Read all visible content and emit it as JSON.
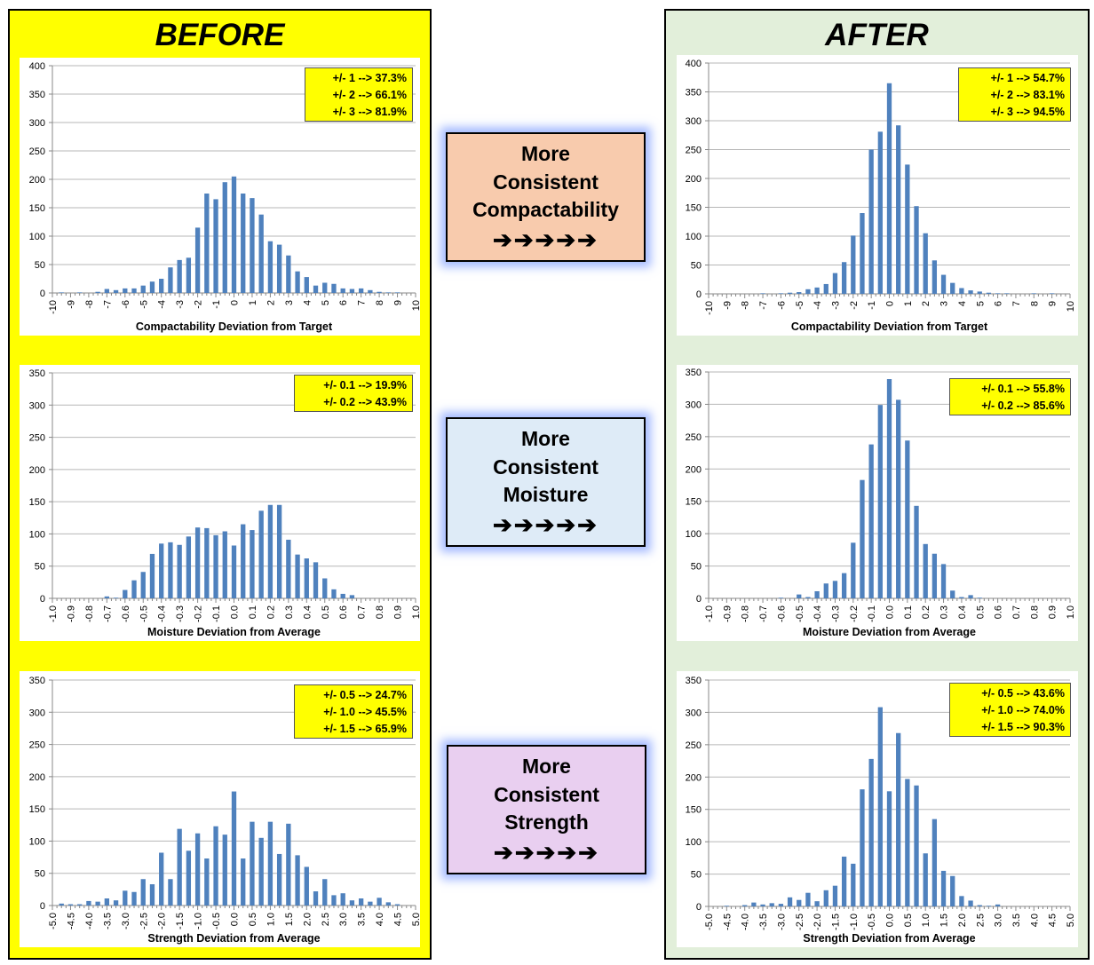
{
  "before_title": "BEFORE",
  "after_title": "AFTER",
  "middle": [
    {
      "lines": [
        "More",
        "Consistent",
        "Compactability"
      ],
      "arrows": "➔➔➔➔➔",
      "color": "#f8cbad"
    },
    {
      "lines": [
        "More",
        "Consistent",
        "Moisture"
      ],
      "arrows": "➔➔➔➔➔",
      "color": "#deebf7"
    },
    {
      "lines": [
        "More",
        "Consistent",
        "Strength"
      ],
      "arrows": "➔➔➔➔➔",
      "color": "#e9cff0"
    }
  ],
  "colors": {
    "bar": "#4f81bd",
    "before_panel": "#ffff00",
    "after_panel": "#e2efda",
    "stat_box": "#ffff00"
  },
  "chart_data": [
    {
      "type": "bar",
      "panel": "before",
      "xlabel": "Compactability Deviation from Target",
      "ylabel": "",
      "ylim": [
        0,
        400
      ],
      "yticks": [
        0,
        50,
        100,
        150,
        200,
        250,
        300,
        350,
        400
      ],
      "xrange": [
        -10,
        10
      ],
      "xticks": [
        "-10",
        "-9",
        "-8",
        "-7",
        "-6",
        "-5",
        "-4",
        "-3",
        "-2",
        "-1",
        "0",
        "1",
        "2",
        "3",
        "4",
        "5",
        "6",
        "7",
        "8",
        "9",
        "10"
      ],
      "x": [
        -9.5,
        -8.5,
        -7.5,
        -7,
        -6.5,
        -6,
        -5.5,
        -5,
        -4.5,
        -4,
        -3.5,
        -3,
        -2.5,
        -2,
        -1.5,
        -1,
        -0.5,
        0,
        0.5,
        1,
        1.5,
        2,
        2.5,
        3,
        3.5,
        4,
        4.5,
        5,
        5.5,
        6,
        6.5,
        7,
        7.5,
        8,
        8.5,
        9
      ],
      "values": [
        1,
        1,
        2,
        7,
        5,
        8,
        8,
        13,
        20,
        25,
        45,
        58,
        62,
        115,
        175,
        165,
        195,
        205,
        175,
        167,
        138,
        91,
        85,
        66,
        38,
        28,
        13,
        18,
        16,
        8,
        7,
        8,
        5,
        2,
        1,
        1
      ],
      "stats": [
        "+/- 1 --> 37.3%",
        "+/- 2 --> 66.1%",
        "+/- 3 --> 81.9%"
      ],
      "grid": true
    },
    {
      "type": "bar",
      "panel": "before",
      "xlabel": "Moisture Deviation from Average",
      "ylabel": "",
      "ylim": [
        0,
        350
      ],
      "yticks": [
        0,
        50,
        100,
        150,
        200,
        250,
        300,
        350
      ],
      "xrange": [
        -1.0,
        1.0
      ],
      "xticks": [
        "-1.0",
        "-0.9",
        "-0.8",
        "-0.7",
        "-0.6",
        "-0.5",
        "-0.4",
        "-0.3",
        "-0.2",
        "-0.1",
        "0.0",
        "0.1",
        "0.2",
        "0.3",
        "0.4",
        "0.5",
        "0.6",
        "0.7",
        "0.8",
        "0.9",
        "1.0"
      ],
      "x": [
        -0.7,
        -0.65,
        -0.6,
        -0.55,
        -0.5,
        -0.45,
        -0.4,
        -0.35,
        -0.3,
        -0.25,
        -0.2,
        -0.15,
        -0.1,
        -0.05,
        0,
        0.05,
        0.1,
        0.15,
        0.2,
        0.25,
        0.3,
        0.35,
        0.4,
        0.45,
        0.5,
        0.55,
        0.6,
        0.65
      ],
      "values": [
        3,
        1,
        13,
        28,
        41,
        69,
        85,
        87,
        83,
        96,
        110,
        109,
        98,
        104,
        82,
        115,
        106,
        136,
        145,
        145,
        91,
        68,
        62,
        56,
        31,
        14,
        7,
        5
      ],
      "stats": [
        "+/- 0.1 --> 19.9%",
        "+/- 0.2 --> 43.9%"
      ],
      "grid": true
    },
    {
      "type": "bar",
      "panel": "before",
      "xlabel": "Strength Deviation from Average",
      "ylabel": "",
      "ylim": [
        0,
        350
      ],
      "yticks": [
        0,
        50,
        100,
        150,
        200,
        250,
        300,
        350
      ],
      "xrange": [
        -5.0,
        5.0
      ],
      "xticks": [
        "-5.0",
        "-4.5",
        "-4.0",
        "-3.5",
        "-3.0",
        "-2.5",
        "-2.0",
        "-1.5",
        "-1.0",
        "-0.5",
        "0.0",
        "0.5",
        "1.0",
        "1.5",
        "2.0",
        "2.5",
        "3.0",
        "3.5",
        "4.0",
        "4.5",
        "5.0"
      ],
      "x": [
        -4.75,
        -4.5,
        -4.25,
        -4,
        -3.75,
        -3.5,
        -3.25,
        -3,
        -2.75,
        -2.5,
        -2.25,
        -2,
        -1.75,
        -1.5,
        -1.25,
        -1,
        -0.75,
        -0.5,
        -0.25,
        0,
        0.25,
        0.5,
        0.75,
        1,
        1.25,
        1.5,
        1.75,
        2,
        2.25,
        2.5,
        2.75,
        3,
        3.25,
        3.5,
        3.75,
        4,
        4.25,
        4.5
      ],
      "values": [
        3,
        2,
        2,
        7,
        6,
        11,
        8,
        23,
        21,
        41,
        33,
        82,
        41,
        119,
        85,
        112,
        73,
        123,
        110,
        177,
        73,
        130,
        105,
        130,
        80,
        127,
        78,
        60,
        22,
        41,
        16,
        19,
        8,
        11,
        6,
        12,
        5,
        2
      ],
      "stats": [
        "+/- 0.5 --> 24.7%",
        "+/- 1.0 --> 45.5%",
        "+/- 1.5 --> 65.9%"
      ],
      "grid": true
    },
    {
      "type": "bar",
      "panel": "after",
      "xlabel": "Compactability Deviation from Target",
      "ylabel": "",
      "ylim": [
        0,
        400
      ],
      "yticks": [
        0,
        50,
        100,
        150,
        200,
        250,
        300,
        350,
        400
      ],
      "xrange": [
        -10,
        10
      ],
      "xticks": [
        "-10",
        "-9",
        "-8",
        "-7",
        "-6",
        "-5",
        "-4",
        "-3",
        "-2",
        "-1",
        "0",
        "1",
        "2",
        "3",
        "4",
        "5",
        "6",
        "7",
        "8",
        "9",
        "10"
      ],
      "x": [
        -7,
        -6,
        -5.5,
        -5,
        -4.5,
        -4,
        -3.5,
        -3,
        -2.5,
        -2,
        -1.5,
        -1,
        -0.5,
        0,
        0.5,
        1,
        1.5,
        2,
        2.5,
        3,
        3.5,
        4,
        4.5,
        5,
        5.5,
        6,
        6.5,
        8,
        9
      ],
      "values": [
        1,
        1,
        2,
        3,
        8,
        11,
        17,
        36,
        55,
        101,
        140,
        250,
        281,
        365,
        292,
        224,
        152,
        105,
        58,
        33,
        19,
        10,
        6,
        4,
        2,
        1,
        1,
        1,
        1
      ],
      "stats": [
        "+/- 1 --> 54.7%",
        "+/- 2 --> 83.1%",
        "+/- 3 --> 94.5%"
      ],
      "grid": true
    },
    {
      "type": "bar",
      "panel": "after",
      "xlabel": "Moisture Deviation from Average",
      "ylabel": "",
      "ylim": [
        0,
        350
      ],
      "yticks": [
        0,
        50,
        100,
        150,
        200,
        250,
        300,
        350
      ],
      "xrange": [
        -1.0,
        1.0
      ],
      "xticks": [
        "-1.0",
        "-0.9",
        "-0.8",
        "-0.7",
        "-0.6",
        "-0.5",
        "-0.4",
        "-0.3",
        "-0.2",
        "-0.1",
        "0.0",
        "0.1",
        "0.2",
        "0.3",
        "0.4",
        "0.5",
        "0.6",
        "0.7",
        "0.8",
        "0.9",
        "1.0"
      ],
      "x": [
        -0.6,
        -0.5,
        -0.45,
        -0.4,
        -0.35,
        -0.3,
        -0.25,
        -0.2,
        -0.15,
        -0.1,
        -0.05,
        0,
        0.05,
        0.1,
        0.15,
        0.2,
        0.25,
        0.3,
        0.35,
        0.4,
        0.45,
        0.5
      ],
      "values": [
        1,
        6,
        2,
        11,
        23,
        27,
        39,
        86,
        183,
        238,
        299,
        339,
        307,
        244,
        143,
        84,
        69,
        53,
        12,
        2,
        5,
        1
      ],
      "stats": [
        "+/- 0.1 --> 55.8%",
        "+/- 0.2 --> 85.6%"
      ],
      "grid": true
    },
    {
      "type": "bar",
      "panel": "after",
      "xlabel": "Strength Deviation from Average",
      "ylabel": "",
      "ylim": [
        0,
        350
      ],
      "yticks": [
        0,
        50,
        100,
        150,
        200,
        250,
        300,
        350
      ],
      "xrange": [
        -5.0,
        5.0
      ],
      "xticks": [
        "-5.0",
        "-4.5",
        "-4.0",
        "-3.5",
        "-3.0",
        "-2.5",
        "-2.0",
        "-1.5",
        "-1.0",
        "-0.5",
        "0.0",
        "0.5",
        "1.0",
        "1.5",
        "2.0",
        "2.5",
        "3.0",
        "3.5",
        "4.0",
        "4.5",
        "5.0"
      ],
      "x": [
        -4.5,
        -4,
        -3.75,
        -3.5,
        -3.25,
        -3,
        -2.75,
        -2.5,
        -2.25,
        -2,
        -1.75,
        -1.5,
        -1.25,
        -1,
        -0.75,
        -0.5,
        -0.25,
        0,
        0.25,
        0.5,
        0.75,
        1,
        1.25,
        1.5,
        1.75,
        2,
        2.25,
        2.5,
        2.75,
        3
      ],
      "values": [
        1,
        2,
        6,
        3,
        5,
        4,
        14,
        10,
        21,
        8,
        25,
        32,
        77,
        66,
        181,
        228,
        308,
        178,
        268,
        197,
        187,
        82,
        135,
        55,
        47,
        16,
        9,
        2,
        1,
        3
      ],
      "stats": [
        "+/- 0.5 --> 43.6%",
        "+/- 1.0 --> 74.0%",
        "+/- 1.5 --> 90.3%"
      ],
      "grid": true
    }
  ]
}
